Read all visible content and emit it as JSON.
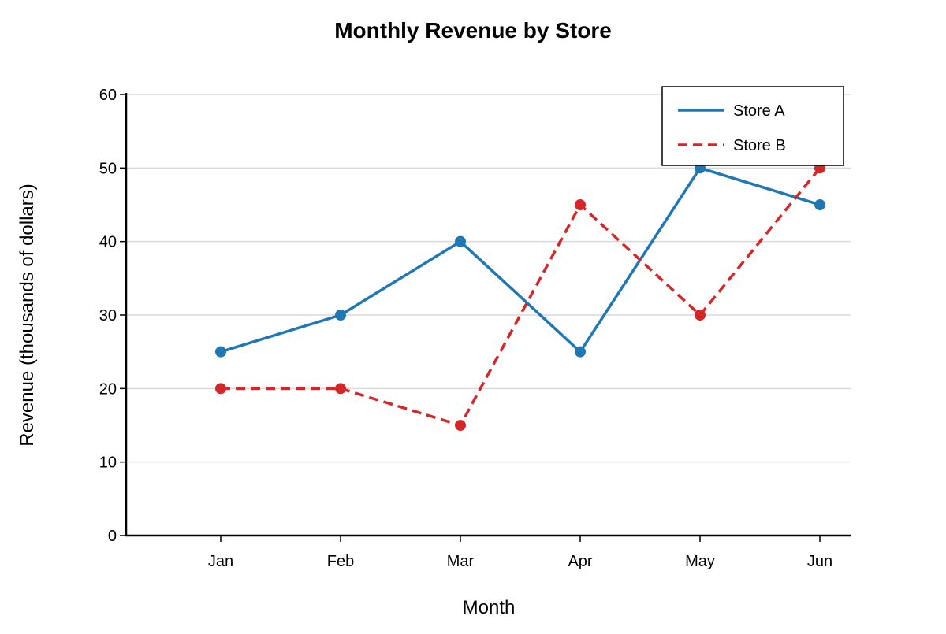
{
  "chart_data": {
    "type": "line",
    "title": "Monthly Revenue by Store",
    "xlabel": "Month",
    "ylabel": "Revenue (thousands of dollars)",
    "categories": [
      "Jan",
      "Feb",
      "Mar",
      "Apr",
      "May",
      "Jun"
    ],
    "ylim": [
      0,
      60
    ],
    "yticks": [
      0,
      10,
      20,
      30,
      40,
      50,
      60
    ],
    "grid": "horizontal",
    "legend_position": "top-right",
    "series": [
      {
        "name": "Store A",
        "values": [
          25,
          30,
          40,
          25,
          50,
          45
        ],
        "color": "#1f77b4",
        "line_style": "solid"
      },
      {
        "name": "Store B",
        "values": [
          20,
          20,
          15,
          45,
          30,
          50
        ],
        "color": "#d62728",
        "line_style": "dashed"
      }
    ]
  }
}
